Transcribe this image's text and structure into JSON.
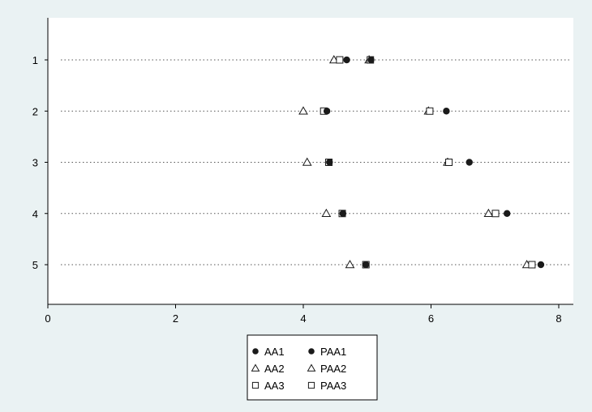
{
  "chart_data": {
    "type": "scatter",
    "title": "",
    "xlabel": "",
    "ylabel": "",
    "categories": [
      "1",
      "2",
      "3",
      "4",
      "5"
    ],
    "xlim": [
      0,
      8.25
    ],
    "xticks": [
      0,
      2,
      4,
      6,
      8
    ],
    "grid": "dotted horizontal lines at each category",
    "legend_position": "bottom-center",
    "series": [
      {
        "name": "AA1",
        "marker": "filled-circle",
        "values": [
          4.68,
          4.37,
          4.41,
          4.62,
          4.98
        ]
      },
      {
        "name": "AA2",
        "marker": "triangle",
        "values": [
          4.48,
          4.0,
          4.06,
          4.36,
          4.73
        ]
      },
      {
        "name": "AA3",
        "marker": "square",
        "values": [
          4.57,
          4.32,
          4.4,
          4.61,
          4.98
        ]
      },
      {
        "name": "PAA1",
        "marker": "filled-circle",
        "values": [
          5.06,
          6.24,
          6.6,
          7.19,
          7.72
        ]
      },
      {
        "name": "PAA2",
        "marker": "triangle",
        "values": [
          5.03,
          5.96,
          6.26,
          6.9,
          7.5
        ]
      },
      {
        "name": "PAA3",
        "marker": "square",
        "values": [
          5.05,
          5.98,
          6.28,
          7.01,
          7.58
        ]
      }
    ]
  },
  "legend": {
    "items": [
      {
        "label": "AA1",
        "marker": "filled-circle"
      },
      {
        "label": "PAA1",
        "marker": "filled-circle"
      },
      {
        "label": "AA2",
        "marker": "triangle"
      },
      {
        "label": "PAA2",
        "marker": "triangle"
      },
      {
        "label": "AA3",
        "marker": "square"
      },
      {
        "label": "PAA3",
        "marker": "square"
      }
    ]
  },
  "colors": {
    "background": "#eaf2f3",
    "plot_background": "#ffffff",
    "marker": "#1a1a1a",
    "axis": "#000000"
  }
}
